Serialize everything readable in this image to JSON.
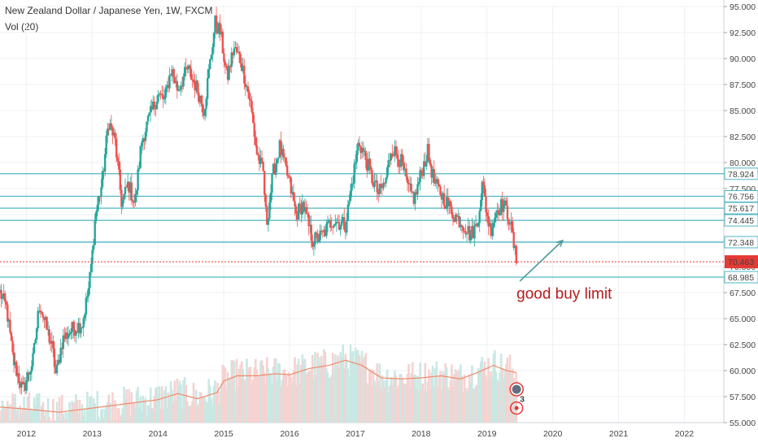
{
  "header": {
    "title": "New Zealand Dollar / Japanese Yen, 1W, FXCM",
    "indicator": "Vol (20)"
  },
  "chart_data": {
    "type": "candlestick",
    "title": "New Zealand Dollar / Japanese Yen, 1W, FXCM",
    "ylim": [
      55,
      95
    ],
    "xlim": [
      2011.6,
      2022.6
    ],
    "y_ticks": [
      "95.000",
      "92.500",
      "90.000",
      "87.500",
      "85.000",
      "82.500",
      "80.000",
      "77.500",
      "75.000",
      "72.500",
      "70.000",
      "67.500",
      "65.000",
      "62.500",
      "60.000",
      "57.500",
      "55.000"
    ],
    "x_ticks": [
      "2012",
      "2013",
      "2014",
      "2015",
      "2016",
      "2017",
      "2018",
      "2019",
      "2020",
      "2021",
      "2022"
    ],
    "price_path": [
      [
        2011.6,
        67.5
      ],
      [
        2011.7,
        66.0
      ],
      [
        2011.8,
        61.0
      ],
      [
        2011.95,
        58.0
      ],
      [
        2012.1,
        61.0
      ],
      [
        2012.2,
        66.5
      ],
      [
        2012.4,
        62.0
      ],
      [
        2012.45,
        59.5
      ],
      [
        2012.55,
        63.0
      ],
      [
        2012.7,
        64.0
      ],
      [
        2012.85,
        64.5
      ],
      [
        2012.95,
        68.0
      ],
      [
        2013.0,
        71.0
      ],
      [
        2013.05,
        75.0
      ],
      [
        2013.15,
        78.0
      ],
      [
        2013.25,
        84.0
      ],
      [
        2013.35,
        82.0
      ],
      [
        2013.45,
        76.0
      ],
      [
        2013.55,
        78.0
      ],
      [
        2013.65,
        76.0
      ],
      [
        2013.75,
        82.0
      ],
      [
        2013.85,
        84.0
      ],
      [
        2014.0,
        86.5
      ],
      [
        2014.1,
        86.0
      ],
      [
        2014.2,
        89.0
      ],
      [
        2014.3,
        87.0
      ],
      [
        2014.45,
        89.0
      ],
      [
        2014.6,
        87.0
      ],
      [
        2014.7,
        85.0
      ],
      [
        2014.8,
        90.0
      ],
      [
        2014.87,
        93.5
      ],
      [
        2014.95,
        92.5
      ],
      [
        2015.05,
        88.0
      ],
      [
        2015.15,
        91.0
      ],
      [
        2015.25,
        90.0
      ],
      [
        2015.4,
        86.0
      ],
      [
        2015.5,
        81.0
      ],
      [
        2015.6,
        79.0
      ],
      [
        2015.65,
        74.0
      ],
      [
        2015.75,
        79.0
      ],
      [
        2015.85,
        81.5
      ],
      [
        2016.0,
        78.0
      ],
      [
        2016.1,
        75.0
      ],
      [
        2016.2,
        76.0
      ],
      [
        2016.35,
        72.5
      ],
      [
        2016.5,
        73.0
      ],
      [
        2016.65,
        74.5
      ],
      [
        2016.85,
        74.0
      ],
      [
        2016.95,
        78.0
      ],
      [
        2017.05,
        82.0
      ],
      [
        2017.15,
        80.5
      ],
      [
        2017.25,
        78.5
      ],
      [
        2017.35,
        77.0
      ],
      [
        2017.45,
        78.0
      ],
      [
        2017.55,
        81.5
      ],
      [
        2017.7,
        80.0
      ],
      [
        2017.8,
        77.5
      ],
      [
        2017.9,
        76.5
      ],
      [
        2018.0,
        79.0
      ],
      [
        2018.1,
        81.0
      ],
      [
        2018.2,
        78.0
      ],
      [
        2018.35,
        76.5
      ],
      [
        2018.5,
        75.0
      ],
      [
        2018.65,
        74.0
      ],
      [
        2018.75,
        73.0
      ],
      [
        2018.85,
        74.0
      ],
      [
        2018.93,
        78.0
      ],
      [
        2019.0,
        75.0
      ],
      [
        2019.05,
        73.5
      ],
      [
        2019.15,
        75.5
      ],
      [
        2019.25,
        76.0
      ],
      [
        2019.35,
        74.5
      ],
      [
        2019.42,
        71.5
      ],
      [
        2019.45,
        70.5
      ]
    ],
    "volume_ma_path": [
      [
        2011.6,
        56.5
      ],
      [
        2012.0,
        56.3
      ],
      [
        2012.5,
        56.0
      ],
      [
        2013.0,
        56.4
      ],
      [
        2013.5,
        56.8
      ],
      [
        2014.0,
        57.2
      ],
      [
        2014.3,
        57.8
      ],
      [
        2014.6,
        57.3
      ],
      [
        2014.9,
        57.9
      ],
      [
        2015.0,
        59.0
      ],
      [
        2015.2,
        59.5
      ],
      [
        2015.5,
        59.5
      ],
      [
        2015.8,
        59.7
      ],
      [
        2016.0,
        59.6
      ],
      [
        2016.3,
        60.2
      ],
      [
        2016.6,
        60.5
      ],
      [
        2016.85,
        61.0
      ],
      [
        2017.1,
        60.5
      ],
      [
        2017.4,
        59.3
      ],
      [
        2017.7,
        59.2
      ],
      [
        2018.0,
        59.3
      ],
      [
        2018.3,
        59.5
      ],
      [
        2018.6,
        59.2
      ],
      [
        2018.85,
        59.8
      ],
      [
        2019.1,
        60.5
      ],
      [
        2019.3,
        60.0
      ],
      [
        2019.45,
        59.8
      ]
    ],
    "horizontal_levels": [
      {
        "value": 78.924,
        "label": "78.924"
      },
      {
        "value": 76.756,
        "label": "76.756"
      },
      {
        "value": 75.617,
        "label": "75.617"
      },
      {
        "value": 74.445,
        "label": "74.445"
      },
      {
        "value": 72.348,
        "label": "72.348"
      },
      {
        "value": 68.985,
        "label": "68.985"
      }
    ],
    "current_price": {
      "value": 70.463,
      "label": "70.463"
    },
    "annotation": {
      "text": "good buy limit"
    },
    "marker_labels": [
      "3"
    ],
    "colors": {
      "up": "#26a69a",
      "down": "#ef5350",
      "level": "#4fb6c4",
      "current": "#e53935",
      "arrow": "#4a9a9a",
      "volume_ma": "#ef8a6a"
    }
  }
}
